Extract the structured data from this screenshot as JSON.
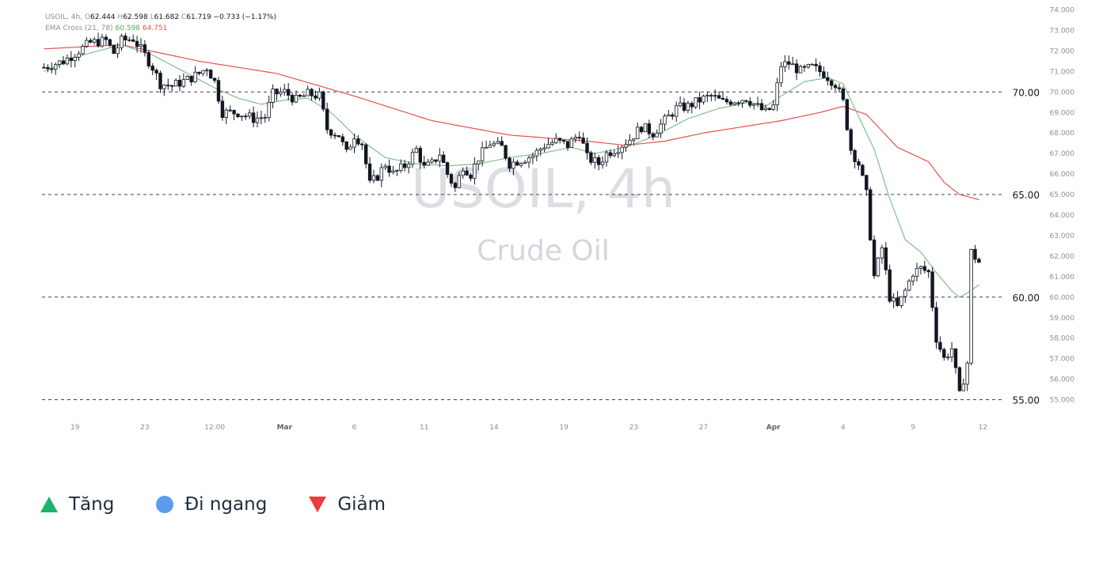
{
  "info_line1": {
    "symbol": "USOIL, 4h,",
    "o_label": "O",
    "o": "62.444",
    "h_label": "H",
    "h": "62.598",
    "l_label": "L",
    "l": "61.682",
    "c_label": "C",
    "c": "61.719",
    "change": "−0.733 (−1.17%)"
  },
  "info_line2": {
    "indicator": "EMA Cross (21, 78)",
    "ema_fast": "60.598",
    "ema_slow": "64.751"
  },
  "watermark": {
    "title": "USOIL, 4h",
    "subtitle": "Crude Oil"
  },
  "legend": [
    {
      "label": "Tăng",
      "icon": "triangle-up-icon",
      "color": "#1db36b"
    },
    {
      "label": "Đi ngang",
      "icon": "circle-icon",
      "color": "#5b9cf0"
    },
    {
      "label": "Giảm",
      "icon": "triangle-down-icon",
      "color": "#ea3c3c"
    }
  ],
  "colors": {
    "ema_fast": "#7cc18a",
    "ema_slow": "#e0544f",
    "candle": "#131722",
    "axis_text": "#8a8f99"
  },
  "chart_data": {
    "type": "candlestick",
    "ylim": [
      54.5,
      74.0
    ],
    "y_ticks": [
      "55.000",
      "56.000",
      "57.000",
      "58.000",
      "59.000",
      "60.000",
      "61.000",
      "62.000",
      "63.000",
      "64.000",
      "65.000",
      "66.000",
      "67.000",
      "68.000",
      "69.000",
      "70.000",
      "71.000",
      "72.000",
      "73.000",
      "74.000"
    ],
    "level_lines": [
      {
        "value": 70,
        "label": "70.00"
      },
      {
        "value": 65,
        "label": "65.00"
      },
      {
        "value": 60,
        "label": "60.00"
      },
      {
        "value": 55,
        "label": "55.00"
      }
    ],
    "x_ticks": [
      "19",
      "23",
      "12:00",
      "Mar",
      "6",
      "11",
      "14",
      "19",
      "23",
      "27",
      "Apr",
      "4",
      "9",
      "12"
    ],
    "x_ticks_bold": [
      "Mar",
      "Apr"
    ],
    "x_tick_bars": [
      8,
      26,
      44,
      62,
      80,
      98,
      116,
      134,
      152,
      170,
      188,
      206,
      224,
      242
    ],
    "n_bars": 246,
    "close_anchors": [
      [
        0,
        71.2
      ],
      [
        5,
        71.5
      ],
      [
        12,
        72.4
      ],
      [
        16,
        72.5
      ],
      [
        18,
        71.9
      ],
      [
        20,
        72.5
      ],
      [
        23,
        72.6
      ],
      [
        26,
        71.8
      ],
      [
        28,
        71.2
      ],
      [
        30,
        70.4
      ],
      [
        33,
        70.3
      ],
      [
        37,
        70.6
      ],
      [
        40,
        70.9
      ],
      [
        42,
        71.2
      ],
      [
        44,
        70.5
      ],
      [
        46,
        69.0
      ],
      [
        50,
        69.0
      ],
      [
        54,
        68.7
      ],
      [
        57,
        68.8
      ],
      [
        59,
        69.9
      ],
      [
        62,
        70.0
      ],
      [
        65,
        69.6
      ],
      [
        68,
        69.9
      ],
      [
        71,
        69.8
      ],
      [
        73,
        68.2
      ],
      [
        76,
        67.9
      ],
      [
        78,
        67.0
      ],
      [
        80,
        67.9
      ],
      [
        82,
        67.5
      ],
      [
        84,
        65.5
      ],
      [
        86,
        65.9
      ],
      [
        88,
        66.5
      ],
      [
        90,
        66.0
      ],
      [
        93,
        66.4
      ],
      [
        96,
        67.2
      ],
      [
        98,
        66.3
      ],
      [
        100,
        66.5
      ],
      [
        102,
        67.0
      ],
      [
        104,
        66.0
      ],
      [
        106,
        65.3
      ],
      [
        108,
        66.4
      ],
      [
        110,
        66.0
      ],
      [
        112,
        66.8
      ],
      [
        115,
        67.5
      ],
      [
        118,
        67.3
      ],
      [
        120,
        66.5
      ],
      [
        123,
        66.7
      ],
      [
        126,
        66.9
      ],
      [
        129,
        67.4
      ],
      [
        132,
        67.6
      ],
      [
        135,
        67.4
      ],
      [
        138,
        68.0
      ],
      [
        140,
        66.8
      ],
      [
        143,
        66.5
      ],
      [
        145,
        67.0
      ],
      [
        148,
        67.3
      ],
      [
        151,
        67.7
      ],
      [
        154,
        68.3
      ],
      [
        157,
        68.0
      ],
      [
        160,
        68.6
      ],
      [
        163,
        69.2
      ],
      [
        166,
        69.3
      ],
      [
        169,
        69.6
      ],
      [
        172,
        69.8
      ],
      [
        175,
        69.5
      ],
      [
        178,
        69.6
      ],
      [
        181,
        69.7
      ],
      [
        183,
        69.4
      ],
      [
        186,
        69.0
      ],
      [
        188,
        69.3
      ],
      [
        190,
        71.3
      ],
      [
        192,
        71.4
      ],
      [
        195,
        71.0
      ],
      [
        198,
        71.2
      ],
      [
        201,
        70.9
      ],
      [
        204,
        70.4
      ],
      [
        206,
        69.5
      ],
      [
        208,
        67.2
      ],
      [
        210,
        66.5
      ],
      [
        212,
        65.0
      ],
      [
        214,
        61.0
      ],
      [
        216,
        62.4
      ],
      [
        218,
        60.0
      ],
      [
        220,
        59.5
      ],
      [
        222,
        60.3
      ],
      [
        224,
        61.2
      ],
      [
        226,
        61.4
      ],
      [
        228,
        61.2
      ],
      [
        230,
        58.0
      ],
      [
        232,
        57.0
      ],
      [
        234,
        57.5
      ],
      [
        236,
        55.2
      ],
      [
        238,
        56.8
      ],
      [
        239,
        62.2
      ],
      [
        241,
        61.7
      ]
    ],
    "ema_fast_anchors": [
      [
        0,
        71.0
      ],
      [
        10,
        71.8
      ],
      [
        20,
        72.3
      ],
      [
        28,
        71.8
      ],
      [
        36,
        71.0
      ],
      [
        44,
        70.2
      ],
      [
        50,
        69.7
      ],
      [
        56,
        69.4
      ],
      [
        62,
        69.6
      ],
      [
        68,
        69.7
      ],
      [
        74,
        69.0
      ],
      [
        80,
        67.9
      ],
      [
        88,
        66.8
      ],
      [
        96,
        66.5
      ],
      [
        104,
        66.4
      ],
      [
        112,
        66.5
      ],
      [
        120,
        66.8
      ],
      [
        128,
        67.0
      ],
      [
        136,
        67.3
      ],
      [
        142,
        67.0
      ],
      [
        150,
        67.3
      ],
      [
        158,
        67.9
      ],
      [
        166,
        68.7
      ],
      [
        174,
        69.2
      ],
      [
        182,
        69.5
      ],
      [
        186,
        69.3
      ],
      [
        190,
        69.8
      ],
      [
        196,
        70.5
      ],
      [
        202,
        70.7
      ],
      [
        206,
        70.4
      ],
      [
        210,
        68.8
      ],
      [
        214,
        67.2
      ],
      [
        218,
        64.8
      ],
      [
        222,
        62.8
      ],
      [
        226,
        62.2
      ],
      [
        230,
        61.2
      ],
      [
        234,
        60.3
      ],
      [
        236,
        60.0
      ],
      [
        238,
        60.2
      ],
      [
        241,
        60.6
      ]
    ],
    "ema_slow_anchors": [
      [
        0,
        72.1
      ],
      [
        20,
        72.3
      ],
      [
        40,
        71.5
      ],
      [
        60,
        70.9
      ],
      [
        80,
        69.8
      ],
      [
        100,
        68.6
      ],
      [
        120,
        67.9
      ],
      [
        140,
        67.6
      ],
      [
        150,
        67.4
      ],
      [
        160,
        67.6
      ],
      [
        170,
        68.0
      ],
      [
        180,
        68.3
      ],
      [
        190,
        68.6
      ],
      [
        200,
        69.0
      ],
      [
        206,
        69.3
      ],
      [
        212,
        68.9
      ],
      [
        220,
        67.3
      ],
      [
        228,
        66.6
      ],
      [
        232,
        65.6
      ],
      [
        236,
        65.0
      ],
      [
        241,
        64.75
      ]
    ]
  }
}
